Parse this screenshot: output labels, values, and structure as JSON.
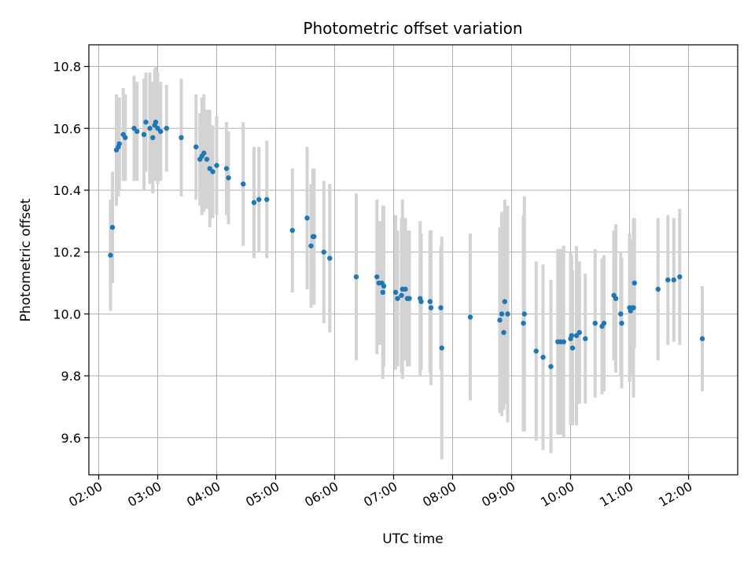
{
  "chart_data": {
    "type": "scatter",
    "title": "Photometric offset variation",
    "xlabel": "UTC time",
    "ylabel": "Photometric offset",
    "x_unit": "hours UTC",
    "xlim": [
      "01:50",
      "12:50"
    ],
    "ylim": [
      9.48,
      10.87
    ],
    "xticks": [
      "02:00",
      "03:00",
      "04:00",
      "05:00",
      "06:00",
      "07:00",
      "08:00",
      "09:00",
      "10:00",
      "11:00",
      "12:00"
    ],
    "yticks": [
      "9.6",
      "9.8",
      "10.0",
      "10.2",
      "10.4",
      "10.6",
      "10.8"
    ],
    "grid": true,
    "colors": {
      "points": "#1f77b4",
      "errorbars": "#d3d3d3",
      "grid": "#b0b0b0"
    },
    "series": [
      {
        "points": [
          [
            "02:12",
            10.19,
            0.18
          ],
          [
            "02:14",
            10.28,
            0.18
          ],
          [
            "02:18",
            10.53,
            0.18
          ],
          [
            "02:20",
            10.54,
            0.16
          ],
          [
            "02:21",
            10.55,
            0.15
          ],
          [
            "02:25",
            10.58,
            0.15
          ],
          [
            "02:27",
            10.57,
            0.14
          ],
          [
            "02:36",
            10.6,
            0.17
          ],
          [
            "02:39",
            10.59,
            0.16
          ],
          [
            "02:46",
            10.58,
            0.18
          ],
          [
            "02:48",
            10.62,
            0.16
          ],
          [
            "02:52",
            10.6,
            0.18
          ],
          [
            "02:55",
            10.57,
            0.18
          ],
          [
            "02:57",
            10.61,
            0.18
          ],
          [
            "02:58",
            10.62,
            0.18
          ],
          [
            "03:00",
            10.6,
            0.18
          ],
          [
            "03:03",
            10.59,
            0.16
          ],
          [
            "03:09",
            10.6,
            0.14
          ],
          [
            "03:24",
            10.57,
            0.19
          ],
          [
            "03:39",
            10.54,
            0.17
          ],
          [
            "03:43",
            10.5,
            0.15
          ],
          [
            "03:45",
            10.51,
            0.19
          ],
          [
            "03:47",
            10.52,
            0.19
          ],
          [
            "03:50",
            10.5,
            0.16
          ],
          [
            "03:53",
            10.47,
            0.19
          ],
          [
            "03:56",
            10.46,
            0.15
          ],
          [
            "04:00",
            10.48,
            0.16
          ],
          [
            "04:10",
            10.47,
            0.15
          ],
          [
            "04:12",
            10.44,
            0.15
          ],
          [
            "04:27",
            10.42,
            0.2
          ],
          [
            "04:38",
            10.36,
            0.18
          ],
          [
            "04:43",
            10.37,
            0.17
          ],
          [
            "04:51",
            10.37,
            0.19
          ],
          [
            "05:17",
            10.27,
            0.2
          ],
          [
            "05:32",
            10.31,
            0.23
          ],
          [
            "05:36",
            10.22,
            0.2
          ],
          [
            "05:38",
            10.25,
            0.22
          ],
          [
            "05:39",
            10.25,
            0.22
          ],
          [
            "05:49",
            10.2,
            0.23
          ],
          [
            "05:55",
            10.18,
            0.24
          ],
          [
            "06:22",
            10.12,
            0.27
          ],
          [
            "06:43",
            10.12,
            0.25
          ],
          [
            "06:45",
            10.1,
            0.2
          ],
          [
            "06:48",
            10.1,
            0.2
          ],
          [
            "06:49",
            10.07,
            0.28
          ],
          [
            "06:50",
            10.09,
            0.26
          ],
          [
            "07:02",
            10.07,
            0.25
          ],
          [
            "07:04",
            10.05,
            0.22
          ],
          [
            "07:08",
            10.06,
            0.25
          ],
          [
            "07:09",
            10.08,
            0.29
          ],
          [
            "07:12",
            10.08,
            0.23
          ],
          [
            "07:14",
            10.05,
            0.22
          ],
          [
            "07:16",
            10.05,
            0.22
          ],
          [
            "07:27",
            10.05,
            0.25
          ],
          [
            "07:28",
            10.04,
            0.22
          ],
          [
            "07:37",
            10.04,
            0.23
          ],
          [
            "07:38",
            10.02,
            0.25
          ],
          [
            "07:48",
            10.02,
            0.2
          ],
          [
            "07:49",
            9.89,
            0.36
          ],
          [
            "08:18",
            9.99,
            0.27
          ],
          [
            "08:48",
            9.98,
            0.3
          ],
          [
            "08:50",
            10.0,
            0.33
          ],
          [
            "08:52",
            9.94,
            0.25
          ],
          [
            "08:53",
            10.04,
            0.33
          ],
          [
            "08:56",
            10.0,
            0.35
          ],
          [
            "09:12",
            9.97,
            0.35
          ],
          [
            "09:13",
            10.0,
            0.38
          ],
          [
            "09:25",
            9.88,
            0.29
          ],
          [
            "09:32",
            9.86,
            0.3
          ],
          [
            "09:40",
            9.83,
            0.28
          ],
          [
            "09:47",
            9.91,
            0.3
          ],
          [
            "09:50",
            9.91,
            0.3
          ],
          [
            "09:53",
            9.91,
            0.31
          ],
          [
            "10:00",
            9.92,
            0.28
          ],
          [
            "10:01",
            9.93,
            0.26
          ],
          [
            "10:02",
            9.89,
            0.25
          ],
          [
            "10:06",
            9.93,
            0.29
          ],
          [
            "10:09",
            9.94,
            0.23
          ],
          [
            "10:15",
            9.92,
            0.21
          ],
          [
            "10:25",
            9.97,
            0.24
          ],
          [
            "10:32",
            9.96,
            0.22
          ],
          [
            "10:34",
            9.97,
            0.22
          ],
          [
            "10:44",
            10.06,
            0.21
          ],
          [
            "10:46",
            10.05,
            0.24
          ],
          [
            "10:51",
            10.0,
            0.2
          ],
          [
            "10:52",
            9.97,
            0.21
          ],
          [
            "11:00",
            10.02,
            0.24
          ],
          [
            "11:01",
            10.01,
            0.2
          ],
          [
            "11:03",
            10.02,
            0.22
          ],
          [
            "11:04",
            10.02,
            0.29
          ],
          [
            "11:05",
            10.1,
            0.21
          ],
          [
            "11:29",
            10.08,
            0.23
          ],
          [
            "11:39",
            10.11,
            0.21
          ],
          [
            "11:45",
            10.11,
            0.2
          ],
          [
            "11:51",
            10.12,
            0.22
          ],
          [
            "12:14",
            9.92,
            0.17
          ]
        ]
      }
    ]
  }
}
